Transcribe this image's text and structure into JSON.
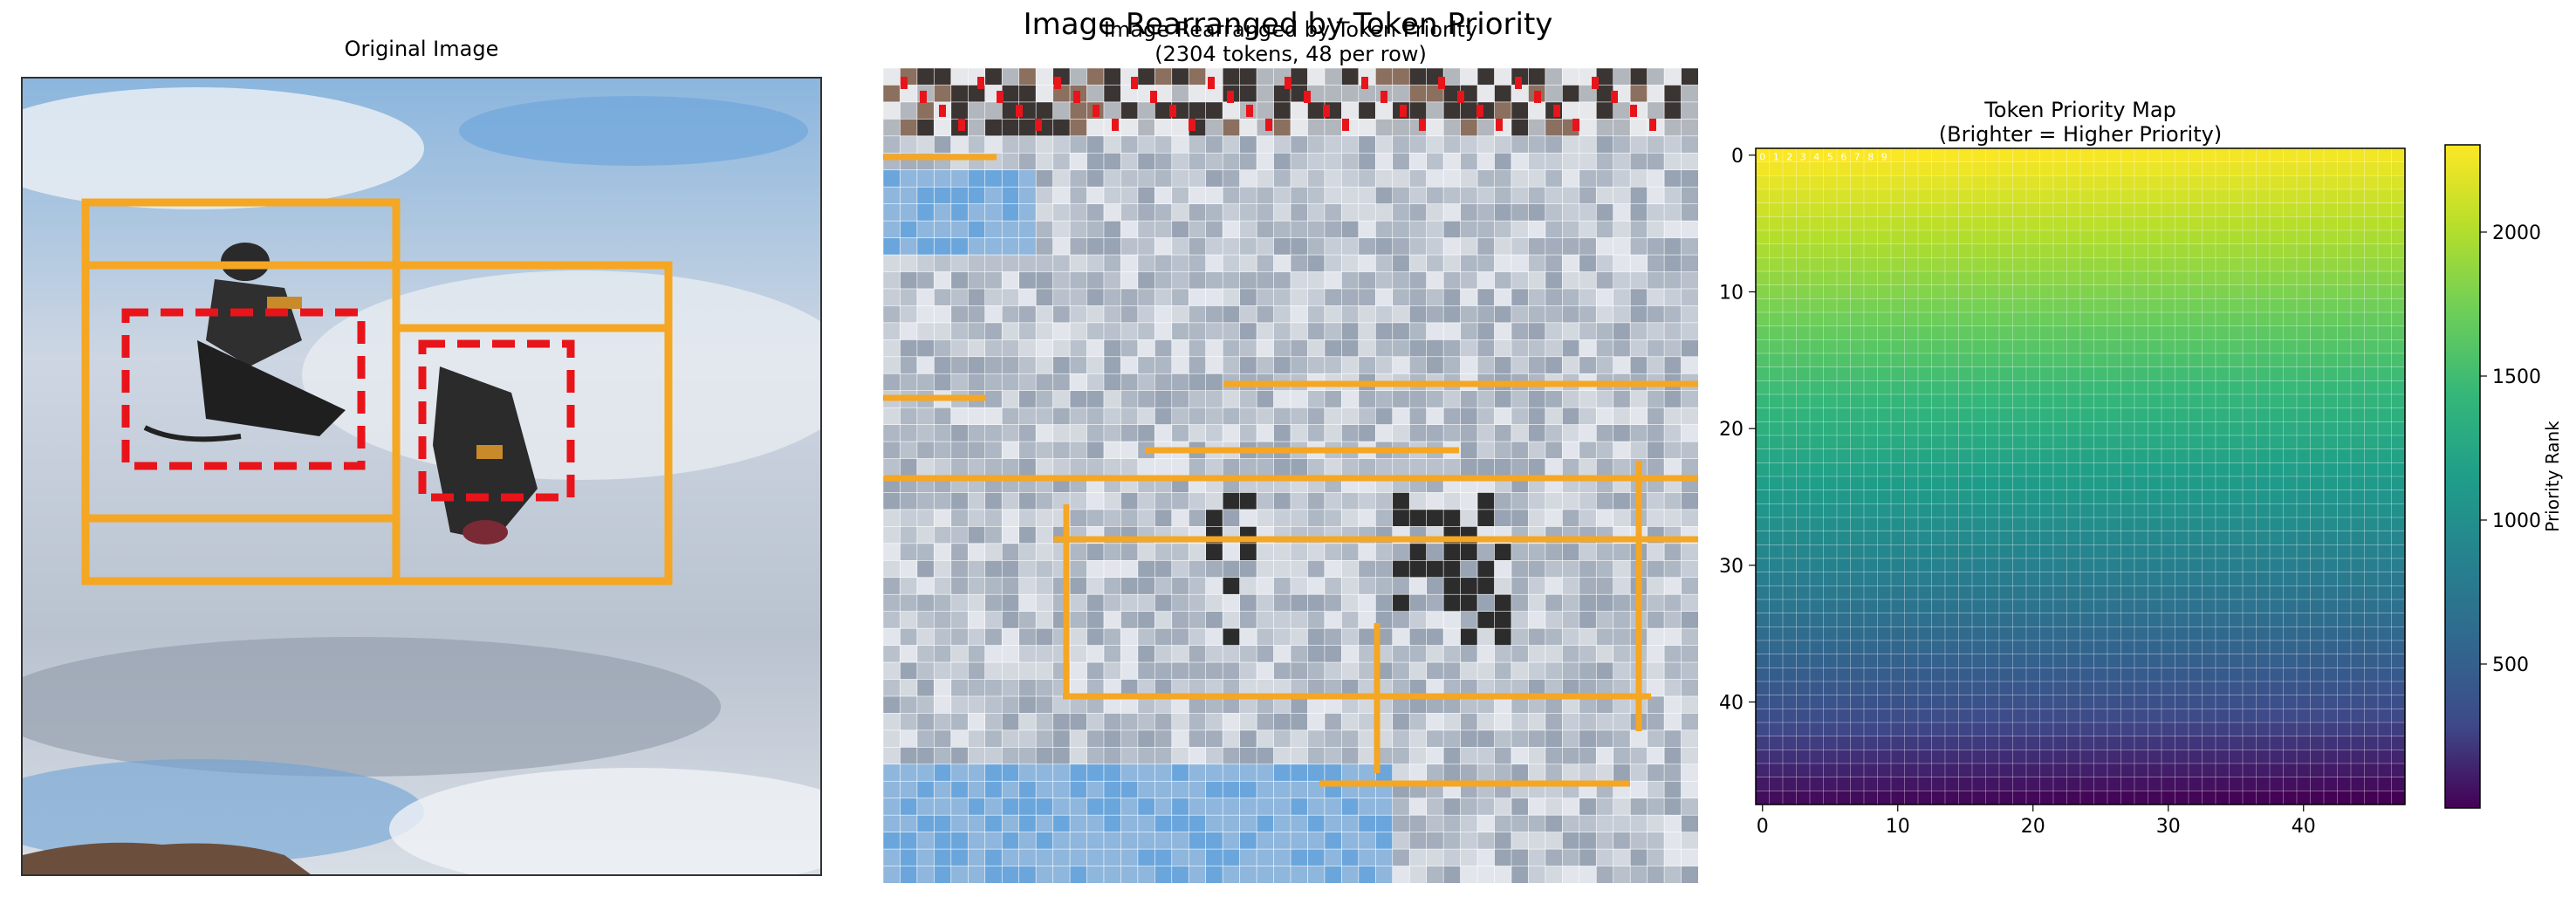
{
  "figure": {
    "suptitle": "Image Rearranged by Token Priority"
  },
  "panels": {
    "original": {
      "title": "Original Image"
    },
    "rearranged": {
      "title_line1": "Image Rearranged by Token Priority",
      "title_line2": "(2304 tokens, 48 per row)"
    },
    "priority_map": {
      "title_line1": "Token Priority Map",
      "title_line2": "(Brighter = Higher Priority)"
    }
  },
  "colors": {
    "box_solid": "#f5a623",
    "box_dashed": "#e8141a",
    "sky_light": "#e4e9f0",
    "sky_blue": "#6aa6dc",
    "cloud_grey": "#aeb7c4",
    "ground": "#6b4f3c"
  },
  "chart_data": [
    {
      "type": "image",
      "title": "Original Image",
      "annotations": [
        {
          "style": "solid",
          "color": "orange"
        },
        {
          "style": "solid",
          "color": "orange"
        },
        {
          "style": "solid",
          "color": "orange"
        },
        {
          "style": "dashed",
          "color": "red"
        },
        {
          "style": "dashed",
          "color": "red"
        }
      ]
    },
    {
      "type": "image",
      "title": "Image Rearranged by Token Priority (2304 tokens, 48 per row)",
      "tokens": 2304,
      "tokens_per_row": 48
    },
    {
      "type": "heatmap",
      "title": "Token Priority Map",
      "subtitle": "(Brighter = Higher Priority)",
      "rows": 48,
      "cols": 48,
      "priority_rule": "rank decreases row by row from top-left (2303) to bottom-right (0)",
      "colormap": "viridis",
      "x_ticks": [
        0,
        10,
        20,
        30,
        40
      ],
      "y_ticks": [
        0,
        10,
        20,
        30,
        40
      ],
      "xlim": [
        -0.5,
        47.5
      ],
      "ylim": [
        47.5,
        -0.5
      ],
      "colorbar": {
        "label": "Priority Rank",
        "ticks": [
          500,
          1000,
          1500,
          2000
        ],
        "range": [
          0,
          2303
        ]
      },
      "cell_labels_top_row": [
        "0",
        "1",
        "2",
        "3",
        "4",
        "5",
        "6",
        "7",
        "8",
        "9"
      ],
      "grid": true
    }
  ]
}
